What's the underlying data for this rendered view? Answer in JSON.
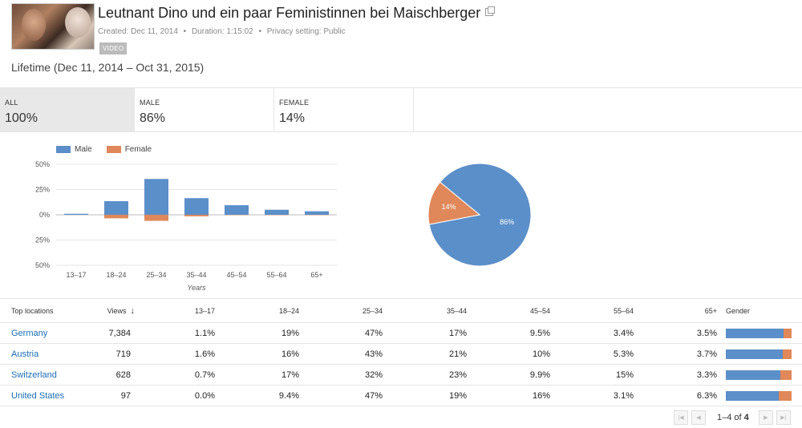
{
  "video": {
    "title": "Leutnant Dino und ein paar Feministinnen bei Maischberger",
    "created": "Created: Dec 11, 2014",
    "duration": "Duration: 1:15:02",
    "privacy": "Privacy setting: Public",
    "badge": "VIDEO",
    "meta_separator": "•"
  },
  "range_label": "Lifetime (Dec 11, 2014 – Oct 31, 2015)",
  "tabs": [
    {
      "label": "ALL",
      "value": "100%"
    },
    {
      "label": "MALE",
      "value": "86%"
    },
    {
      "label": "FEMALE",
      "value": "14%"
    }
  ],
  "colors": {
    "male": "#5b8fc9",
    "female": "#e0885a",
    "grid": "#e6e6e6",
    "link": "#1a6fb5"
  },
  "chart_data": [
    {
      "type": "bar",
      "categories": [
        "13–17",
        "18–24",
        "25–34",
        "35–44",
        "45–54",
        "55–64",
        "65+"
      ],
      "series": [
        {
          "name": "Male",
          "values": [
            1.0,
            13.5,
            35.5,
            16.5,
            9.5,
            5.0,
            3.5
          ]
        },
        {
          "name": "Female",
          "values": [
            0.0,
            3.5,
            6.0,
            1.5,
            0.3,
            0.3,
            0.3
          ]
        }
      ],
      "female_direction": "down",
      "ytick_labels": [
        "50%",
        "25%",
        "0%",
        "25%",
        "50%"
      ],
      "ylim": [
        -50,
        50
      ],
      "xlabel": "Years",
      "legend": "top-left"
    },
    {
      "type": "pie",
      "slices": [
        {
          "name": "Male",
          "value": 86,
          "label": "86%"
        },
        {
          "name": "Female",
          "value": 14,
          "label": "14%"
        }
      ]
    }
  ],
  "table": {
    "headers": [
      "Top locations",
      "Views",
      "13–17",
      "18–24",
      "25–34",
      "35–44",
      "45–54",
      "55–64",
      "65+",
      "Gender"
    ],
    "sort_arrow": "↓",
    "rows": [
      {
        "location": "Germany",
        "views": "7,384",
        "ages": [
          "1.1%",
          "19%",
          "47%",
          "17%",
          "9.5%",
          "3.4%",
          "3.5%"
        ],
        "male_share": 0.88
      },
      {
        "location": "Austria",
        "views": "719",
        "ages": [
          "1.6%",
          "16%",
          "43%",
          "21%",
          "10%",
          "5.3%",
          "3.7%"
        ],
        "male_share": 0.87
      },
      {
        "location": "Switzerland",
        "views": "628",
        "ages": [
          "0.7%",
          "17%",
          "32%",
          "23%",
          "9.9%",
          "15%",
          "3.3%"
        ],
        "male_share": 0.83
      },
      {
        "location": "United States",
        "views": "97",
        "ages": [
          "0.0%",
          "9.4%",
          "47%",
          "19%",
          "16%",
          "3.1%",
          "6.3%"
        ],
        "male_share": 0.81
      }
    ]
  },
  "pagination": {
    "range": "1–4",
    "of": "of",
    "total": "4"
  }
}
